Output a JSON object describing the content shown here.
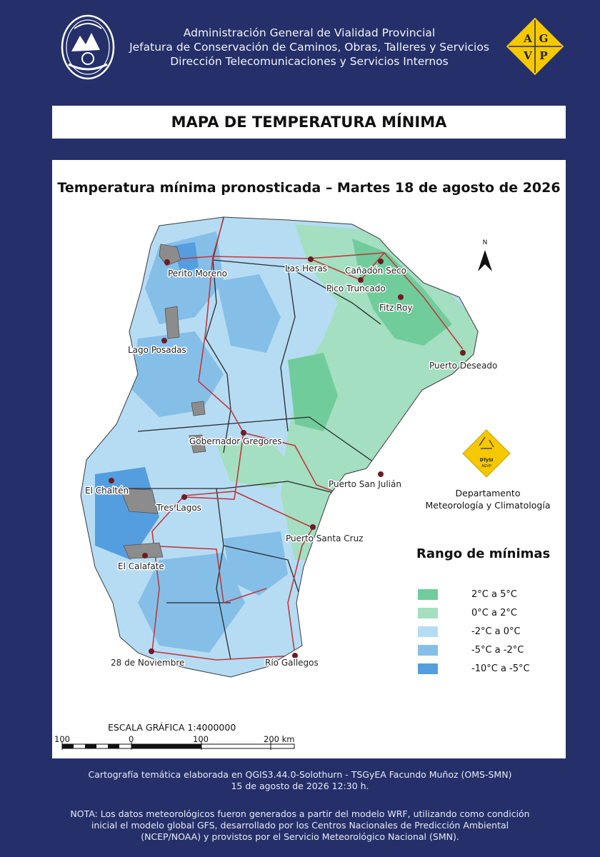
{
  "header": {
    "line1": "Administración General de Vialidad Provincial",
    "line2": "Jefatura de Conservación de Caminos, Obras, Talleres y Servicios",
    "line3": "Dirección Telecomunicaciones y Servicios Internos",
    "logo_letters": [
      "A",
      "G",
      "V",
      "P"
    ]
  },
  "title": "MAPA DE TEMPERATURA MÍNIMA",
  "subtitle": "Temperatura mínima pronosticada – Martes 18 de agosto de 2026",
  "north_label": "N",
  "cities": [
    {
      "name": "Perito Moreno"
    },
    {
      "name": "Las Heras"
    },
    {
      "name": "Cañadón Seco"
    },
    {
      "name": "Pico Truncado"
    },
    {
      "name": "Fitz Roy"
    },
    {
      "name": "Lago Posadas"
    },
    {
      "name": "Puerto Deseado"
    },
    {
      "name": "Gobernador Gregores"
    },
    {
      "name": "El Chaltén"
    },
    {
      "name": "Puerto San Julián"
    },
    {
      "name": "Tres Lagos"
    },
    {
      "name": "Puerto Santa Cruz"
    },
    {
      "name": "El Calafate"
    },
    {
      "name": "28 de Noviembre"
    },
    {
      "name": "Río Gallegos"
    }
  ],
  "department": {
    "logo_text": "DTySI",
    "logo_sub": "AGVP",
    "line1": "Departamento",
    "line2": "Meteorología y Climatología"
  },
  "legend": {
    "title": "Rango de mínimas",
    "items": [
      {
        "label": "2°C a 5°C",
        "color": "#71cc9c"
      },
      {
        "label": "0°C a 2°C",
        "color": "#a3dfc0"
      },
      {
        "label": "-2°C a 0°C",
        "color": "#b6dcf4"
      },
      {
        "label": "-5°C a -2°C",
        "color": "#85bfe8"
      },
      {
        "label": "-10°C a -5°C",
        "color": "#549edf"
      }
    ]
  },
  "scale": {
    "title": "ESCALA GRÁFICA 1:4000000",
    "ticks": [
      "100",
      "0",
      "100",
      "200 km"
    ]
  },
  "footer": {
    "credit": "Cartografía temática elaborada en QGIS3.44.0-Solothurn - TSGyEA Facundo Muñoz (OMS-SMN)",
    "date": "15 de agosto de 2026 12:30 h.",
    "note1": "NOTA: Los datos meteorológicos fueron generados a partir del modelo WRF, utilizando como condición",
    "note2": "inicial el modelo global GFS, desarrollado por los Centros Nacionales de Predicción Ambiental",
    "note3": "(NCEP/NOAA) y provistos por el Servicio Meteorológico Nacional (SMN)."
  },
  "colors": {
    "background": "#25306a",
    "logo_yellow": "#f5c800",
    "route": "#c0393b",
    "locality": "#6e1b25",
    "lake": "#8c8c8c"
  }
}
